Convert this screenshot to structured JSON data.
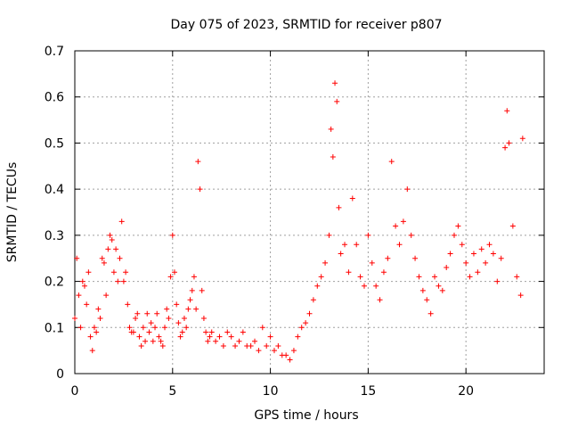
{
  "chart_data": {
    "type": "scatter",
    "title": "Day 075 of 2023, SRMTID for receiver p807",
    "xlabel": "GPS time / hours",
    "ylabel": "SRMTID / TECUs",
    "xlim": [
      0,
      24
    ],
    "ylim": [
      0,
      0.7
    ],
    "x_ticks": [
      0,
      5,
      10,
      15,
      20
    ],
    "x_tick_labels": [
      "0",
      "5",
      "10",
      "15",
      "20"
    ],
    "y_ticks": [
      0,
      0.1,
      0.2,
      0.3,
      0.4,
      0.5,
      0.6,
      0.7
    ],
    "y_tick_labels": [
      "0",
      "0.1",
      "0.2",
      "0.3",
      "0.4",
      "0.5",
      "0.6",
      "0.7"
    ],
    "grid": true,
    "marker": "+",
    "series_color": "#ff0000",
    "series": [
      {
        "name": "SRMTID",
        "points": [
          [
            0.0,
            0.12
          ],
          [
            0.1,
            0.25
          ],
          [
            0.2,
            0.17
          ],
          [
            0.3,
            0.1
          ],
          [
            0.4,
            0.2
          ],
          [
            0.5,
            0.19
          ],
          [
            0.6,
            0.15
          ],
          [
            0.7,
            0.22
          ],
          [
            0.8,
            0.08
          ],
          [
            0.9,
            0.05
          ],
          [
            1.0,
            0.1
          ],
          [
            1.1,
            0.09
          ],
          [
            1.2,
            0.14
          ],
          [
            1.3,
            0.12
          ],
          [
            1.4,
            0.25
          ],
          [
            1.5,
            0.24
          ],
          [
            1.6,
            0.17
          ],
          [
            1.7,
            0.27
          ],
          [
            1.8,
            0.3
          ],
          [
            1.9,
            0.29
          ],
          [
            2.0,
            0.22
          ],
          [
            2.1,
            0.27
          ],
          [
            2.2,
            0.2
          ],
          [
            2.3,
            0.25
          ],
          [
            2.4,
            0.33
          ],
          [
            2.5,
            0.2
          ],
          [
            2.6,
            0.22
          ],
          [
            2.7,
            0.15
          ],
          [
            2.8,
            0.1
          ],
          [
            2.9,
            0.09
          ],
          [
            3.0,
            0.09
          ],
          [
            3.1,
            0.12
          ],
          [
            3.2,
            0.13
          ],
          [
            3.3,
            0.08
          ],
          [
            3.4,
            0.06
          ],
          [
            3.5,
            0.1
          ],
          [
            3.6,
            0.07
          ],
          [
            3.7,
            0.13
          ],
          [
            3.8,
            0.09
          ],
          [
            3.9,
            0.11
          ],
          [
            4.0,
            0.07
          ],
          [
            4.1,
            0.1
          ],
          [
            4.2,
            0.13
          ],
          [
            4.3,
            0.08
          ],
          [
            4.4,
            0.07
          ],
          [
            4.5,
            0.06
          ],
          [
            4.6,
            0.1
          ],
          [
            4.7,
            0.14
          ],
          [
            4.8,
            0.12
          ],
          [
            4.9,
            0.21
          ],
          [
            5.0,
            0.3
          ],
          [
            5.1,
            0.22
          ],
          [
            5.2,
            0.15
          ],
          [
            5.3,
            0.11
          ],
          [
            5.4,
            0.08
          ],
          [
            5.5,
            0.09
          ],
          [
            5.6,
            0.12
          ],
          [
            5.7,
            0.1
          ],
          [
            5.8,
            0.14
          ],
          [
            5.9,
            0.16
          ],
          [
            6.0,
            0.18
          ],
          [
            6.1,
            0.21
          ],
          [
            6.2,
            0.14
          ],
          [
            6.3,
            0.46
          ],
          [
            6.4,
            0.4
          ],
          [
            6.5,
            0.18
          ],
          [
            6.6,
            0.12
          ],
          [
            6.7,
            0.09
          ],
          [
            6.8,
            0.07
          ],
          [
            6.9,
            0.08
          ],
          [
            7.0,
            0.09
          ],
          [
            7.2,
            0.07
          ],
          [
            7.4,
            0.08
          ],
          [
            7.6,
            0.06
          ],
          [
            7.8,
            0.09
          ],
          [
            8.0,
            0.08
          ],
          [
            8.2,
            0.06
          ],
          [
            8.4,
            0.07
          ],
          [
            8.6,
            0.09
          ],
          [
            8.8,
            0.06
          ],
          [
            9.0,
            0.06
          ],
          [
            9.2,
            0.07
          ],
          [
            9.4,
            0.05
          ],
          [
            9.6,
            0.1
          ],
          [
            9.8,
            0.06
          ],
          [
            10.0,
            0.08
          ],
          [
            10.2,
            0.05
          ],
          [
            10.4,
            0.06
          ],
          [
            10.6,
            0.04
          ],
          [
            10.8,
            0.04
          ],
          [
            11.0,
            0.03
          ],
          [
            11.2,
            0.05
          ],
          [
            11.4,
            0.08
          ],
          [
            11.6,
            0.1
          ],
          [
            11.8,
            0.11
          ],
          [
            12.0,
            0.13
          ],
          [
            12.2,
            0.16
          ],
          [
            12.4,
            0.19
          ],
          [
            12.6,
            0.21
          ],
          [
            12.8,
            0.24
          ],
          [
            13.0,
            0.3
          ],
          [
            13.1,
            0.53
          ],
          [
            13.2,
            0.47
          ],
          [
            13.3,
            0.63
          ],
          [
            13.4,
            0.59
          ],
          [
            13.5,
            0.36
          ],
          [
            13.6,
            0.26
          ],
          [
            13.8,
            0.28
          ],
          [
            14.0,
            0.22
          ],
          [
            14.2,
            0.38
          ],
          [
            14.4,
            0.28
          ],
          [
            14.6,
            0.21
          ],
          [
            14.8,
            0.19
          ],
          [
            15.0,
            0.3
          ],
          [
            15.2,
            0.24
          ],
          [
            15.4,
            0.19
          ],
          [
            15.6,
            0.16
          ],
          [
            15.8,
            0.22
          ],
          [
            16.0,
            0.25
          ],
          [
            16.2,
            0.46
          ],
          [
            16.4,
            0.32
          ],
          [
            16.6,
            0.28
          ],
          [
            16.8,
            0.33
          ],
          [
            17.0,
            0.4
          ],
          [
            17.2,
            0.3
          ],
          [
            17.4,
            0.25
          ],
          [
            17.6,
            0.21
          ],
          [
            17.8,
            0.18
          ],
          [
            18.0,
            0.16
          ],
          [
            18.2,
            0.13
          ],
          [
            18.4,
            0.21
          ],
          [
            18.6,
            0.19
          ],
          [
            18.8,
            0.18
          ],
          [
            19.0,
            0.23
          ],
          [
            19.2,
            0.26
          ],
          [
            19.4,
            0.3
          ],
          [
            19.6,
            0.32
          ],
          [
            19.8,
            0.28
          ],
          [
            20.0,
            0.24
          ],
          [
            20.2,
            0.21
          ],
          [
            20.4,
            0.26
          ],
          [
            20.6,
            0.22
          ],
          [
            20.8,
            0.27
          ],
          [
            21.0,
            0.24
          ],
          [
            21.2,
            0.28
          ],
          [
            21.4,
            0.26
          ],
          [
            21.6,
            0.2
          ],
          [
            21.8,
            0.25
          ],
          [
            22.0,
            0.49
          ],
          [
            22.1,
            0.57
          ],
          [
            22.2,
            0.5
          ],
          [
            22.4,
            0.32
          ],
          [
            22.6,
            0.21
          ],
          [
            22.8,
            0.17
          ],
          [
            22.9,
            0.51
          ]
        ]
      }
    ]
  }
}
